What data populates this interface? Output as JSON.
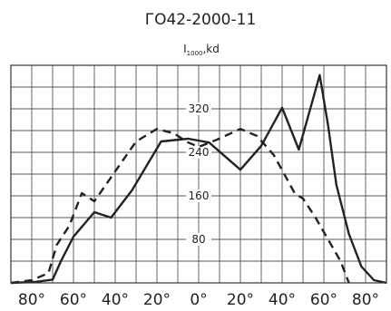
{
  "chart_data": {
    "type": "line",
    "title": "ГО42-2000-11",
    "ylabel": {
      "main": "I",
      "sub": "1000",
      "unit": ",kd"
    },
    "x_ticks": [
      {
        "value": -80,
        "label": "80°"
      },
      {
        "value": -60,
        "label": "60°"
      },
      {
        "value": -40,
        "label": "40°"
      },
      {
        "value": -20,
        "label": "20°"
      },
      {
        "value": 0,
        "label": "0°"
      },
      {
        "value": 20,
        "label": "20°"
      },
      {
        "value": 40,
        "label": "40°"
      },
      {
        "value": 60,
        "label": "60°"
      },
      {
        "value": 80,
        "label": "80°"
      }
    ],
    "y_ticks": [
      {
        "value": 80,
        "label": "80"
      },
      {
        "value": 160,
        "label": "160"
      },
      {
        "value": 240,
        "label": "240"
      },
      {
        "value": 320,
        "label": "320"
      }
    ],
    "xlim": [
      -90,
      90
    ],
    "ylim": [
      0,
      400
    ],
    "grid": true,
    "series": [
      {
        "style": "solid",
        "color": "#222222",
        "points": [
          [
            -90,
            0
          ],
          [
            -78,
            2
          ],
          [
            -70,
            6
          ],
          [
            -66,
            40
          ],
          [
            -60,
            85
          ],
          [
            -50,
            130
          ],
          [
            -42,
            120
          ],
          [
            -32,
            170
          ],
          [
            -18,
            260
          ],
          [
            -5,
            265
          ],
          [
            5,
            258
          ],
          [
            20,
            208
          ],
          [
            30,
            252
          ],
          [
            40,
            322
          ],
          [
            48,
            245
          ],
          [
            58,
            382
          ],
          [
            62,
            290
          ],
          [
            66,
            180
          ],
          [
            72,
            90
          ],
          [
            78,
            30
          ],
          [
            84,
            5
          ],
          [
            90,
            0
          ]
        ]
      },
      {
        "style": "dashed",
        "color": "#222222",
        "points": [
          [
            -90,
            0
          ],
          [
            -80,
            5
          ],
          [
            -72,
            18
          ],
          [
            -68,
            70
          ],
          [
            -62,
            105
          ],
          [
            -56,
            165
          ],
          [
            -50,
            150
          ],
          [
            -40,
            205
          ],
          [
            -30,
            260
          ],
          [
            -20,
            283
          ],
          [
            -12,
            275
          ],
          [
            -5,
            258
          ],
          [
            0,
            250
          ],
          [
            8,
            262
          ],
          [
            20,
            283
          ],
          [
            28,
            270
          ],
          [
            36,
            235
          ],
          [
            46,
            165
          ],
          [
            50,
            155
          ],
          [
            56,
            120
          ],
          [
            62,
            80
          ],
          [
            68,
            40
          ],
          [
            72,
            0
          ]
        ]
      }
    ]
  }
}
